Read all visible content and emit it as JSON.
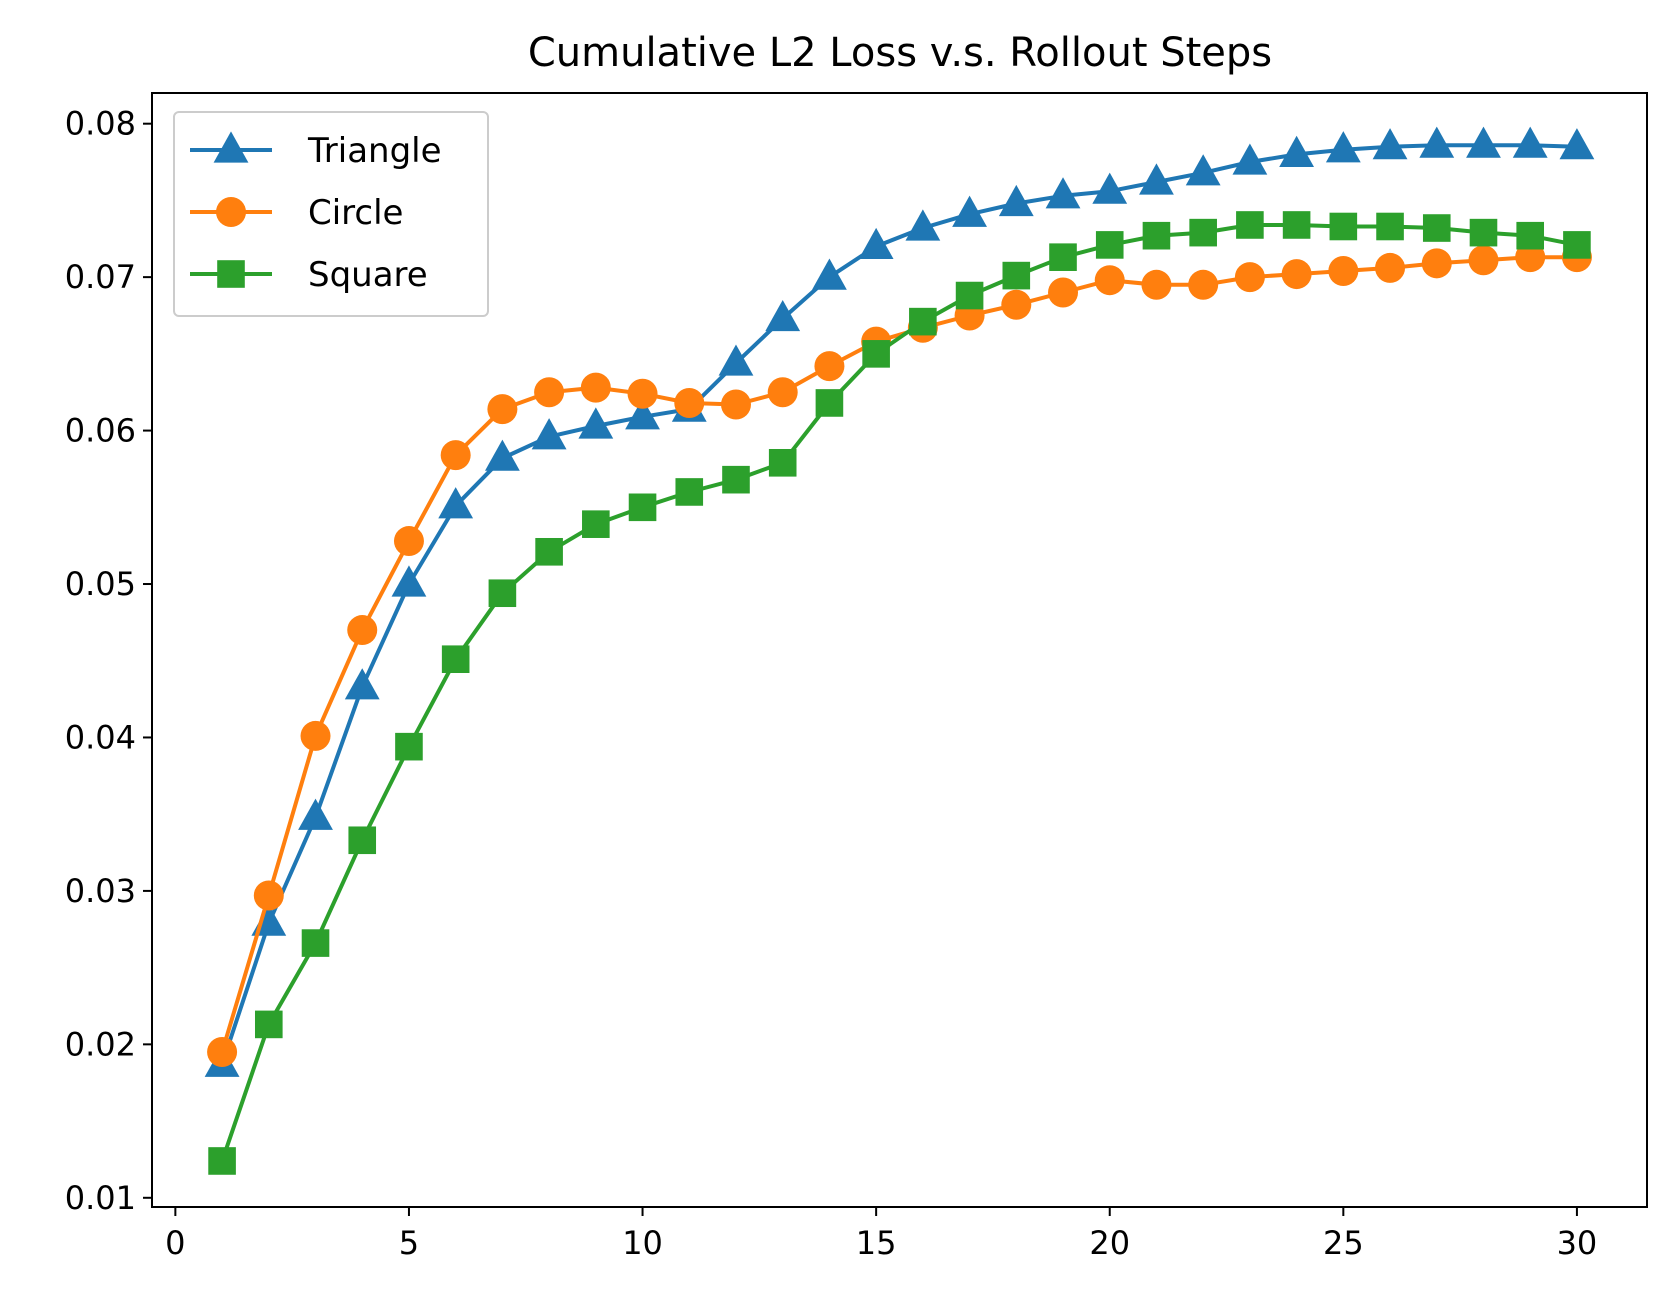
{
  "chart_data": {
    "type": "line",
    "title": "Cumulative L2 Loss v.s. Rollout Steps",
    "xlabel": "",
    "ylabel": "",
    "xlim": [
      -0.5,
      31.5
    ],
    "ylim": [
      0.0094,
      0.082
    ],
    "xticks": [
      0,
      5,
      10,
      15,
      20,
      25,
      30
    ],
    "xtick_labels": [
      "0",
      "5",
      "10",
      "15",
      "20",
      "25",
      "30"
    ],
    "yticks": [
      0.01,
      0.02,
      0.03,
      0.04,
      0.05,
      0.06,
      0.07,
      0.08
    ],
    "ytick_labels": [
      "0.01",
      "0.02",
      "0.03",
      "0.04",
      "0.05",
      "0.06",
      "0.07",
      "0.08"
    ],
    "grid": false,
    "legend_position": "top-left",
    "x": [
      1,
      2,
      3,
      4,
      5,
      6,
      7,
      8,
      9,
      10,
      11,
      12,
      13,
      14,
      15,
      16,
      17,
      18,
      19,
      20,
      21,
      22,
      23,
      24,
      25,
      26,
      27,
      28,
      29,
      30
    ],
    "series": [
      {
        "name": "Triangle",
        "color": "#1f77b4",
        "marker": "triangle",
        "values": [
          0.0187,
          0.0279,
          0.0348,
          0.0433,
          0.05,
          0.0551,
          0.0582,
          0.0596,
          0.0603,
          0.0609,
          0.0614,
          0.0644,
          0.0673,
          0.07,
          0.072,
          0.0732,
          0.0741,
          0.0748,
          0.0753,
          0.0756,
          0.0762,
          0.0768,
          0.0775,
          0.078,
          0.0783,
          0.0785,
          0.0786,
          0.0786,
          0.0786,
          0.0785
        ]
      },
      {
        "name": "Circle",
        "color": "#ff7f0e",
        "marker": "circle",
        "values": [
          0.0195,
          0.0297,
          0.0401,
          0.047,
          0.0528,
          0.0584,
          0.0614,
          0.0625,
          0.0628,
          0.0624,
          0.0618,
          0.0617,
          0.0625,
          0.0642,
          0.0658,
          0.0667,
          0.0675,
          0.0682,
          0.069,
          0.0698,
          0.0695,
          0.0695,
          0.07,
          0.0702,
          0.0704,
          0.0706,
          0.0709,
          0.0711,
          0.0713,
          0.0713
        ]
      },
      {
        "name": "Square",
        "color": "#2ca02c",
        "marker": "square",
        "values": [
          0.0124,
          0.0213,
          0.0266,
          0.0333,
          0.0394,
          0.0451,
          0.0494,
          0.0521,
          0.0539,
          0.055,
          0.056,
          0.0568,
          0.0579,
          0.0618,
          0.065,
          0.0671,
          0.0688,
          0.0701,
          0.0713,
          0.0721,
          0.0727,
          0.0729,
          0.0734,
          0.0734,
          0.0733,
          0.0733,
          0.0732,
          0.0729,
          0.0727,
          0.0721
        ]
      }
    ]
  }
}
